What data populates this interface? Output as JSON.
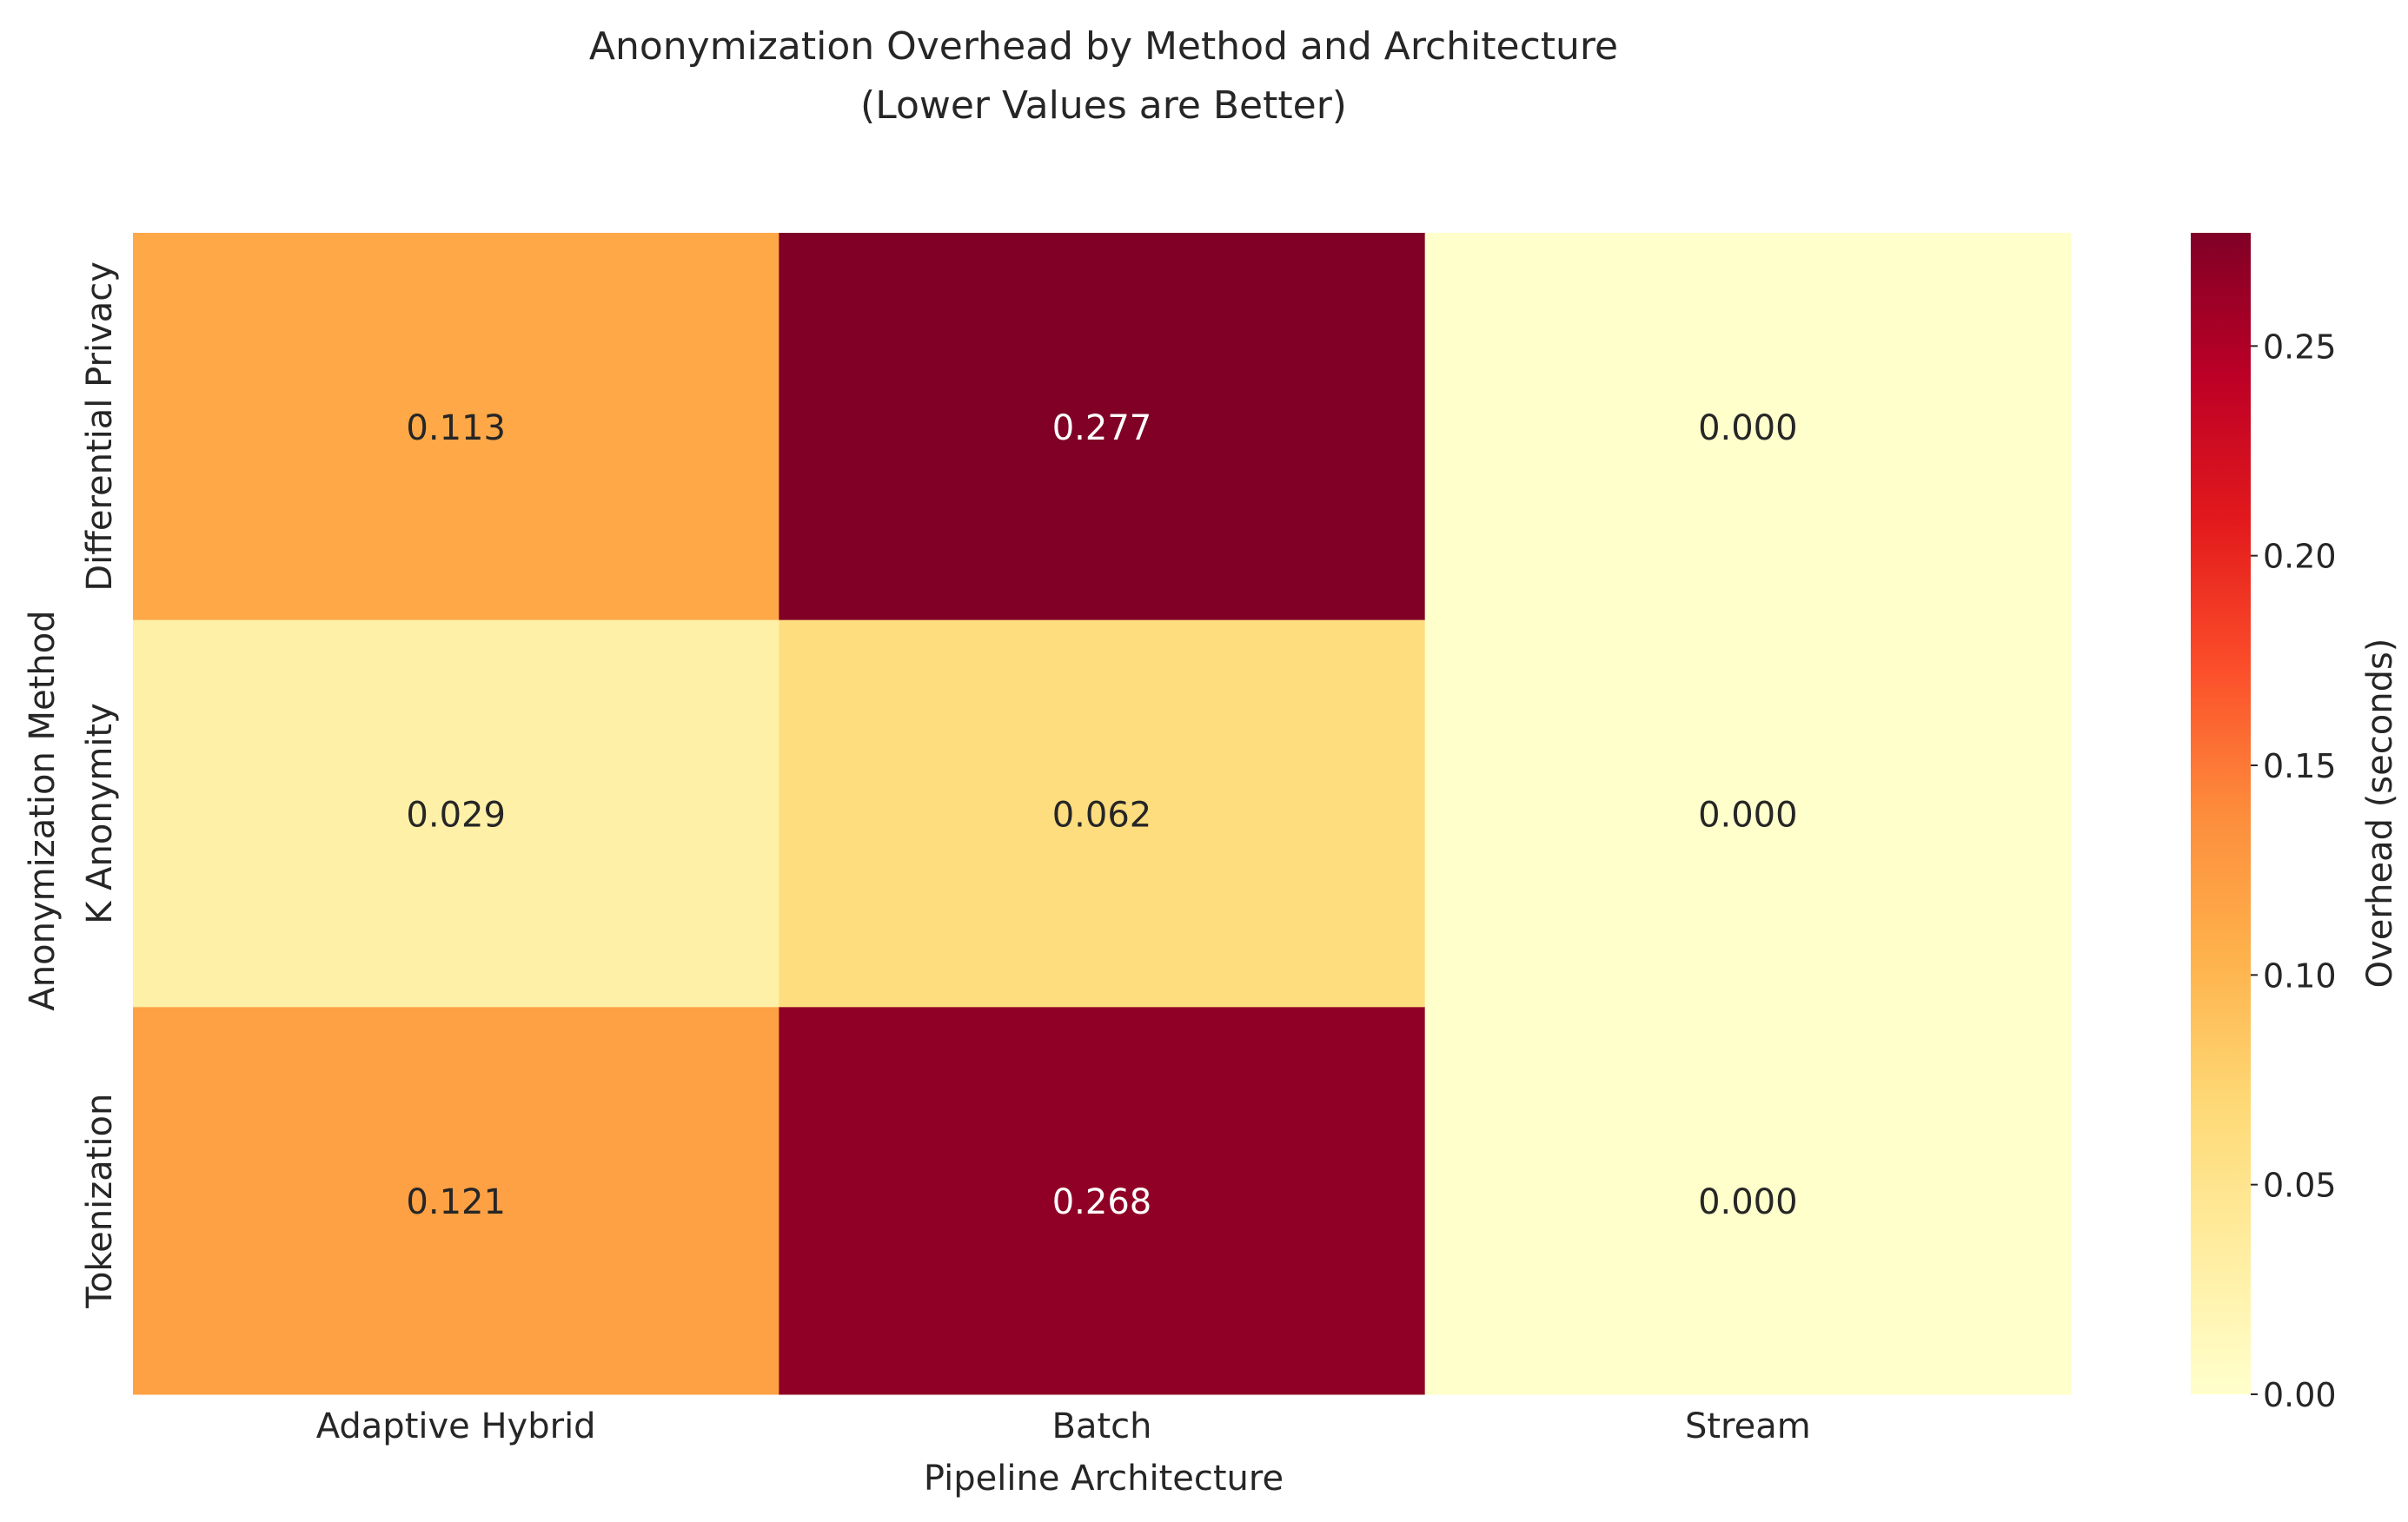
{
  "chart_data": {
    "type": "heatmap",
    "title": "Anonymization Overhead by Method and Architecture",
    "subtitle": "(Lower Values are Better)",
    "xlabel": "Pipeline Architecture",
    "ylabel": "Anonymization Method",
    "x_categories": [
      "Adaptive Hybrid",
      "Batch",
      "Stream"
    ],
    "y_categories": [
      "Differential Privacy",
      "K Anonymity",
      "Tokenization"
    ],
    "values": [
      [
        0.113,
        0.277,
        0.0
      ],
      [
        0.029,
        0.062,
        0.0
      ],
      [
        0.121,
        0.268,
        0.0
      ]
    ],
    "value_labels": [
      [
        "0.113",
        "0.277",
        "0.000"
      ],
      [
        "0.029",
        "0.062",
        "0.000"
      ],
      [
        "0.121",
        "0.268",
        "0.000"
      ]
    ],
    "colormap": "YlOrRd",
    "colorbar": {
      "label": "Overhead (seconds)",
      "range": [
        0.0,
        0.277
      ],
      "ticks": [
        0.0,
        0.05,
        0.1,
        0.15,
        0.2,
        0.25
      ],
      "tick_labels": [
        "0.00",
        "0.05",
        "0.10",
        "0.15",
        "0.20",
        "0.25"
      ]
    },
    "grid": false
  }
}
